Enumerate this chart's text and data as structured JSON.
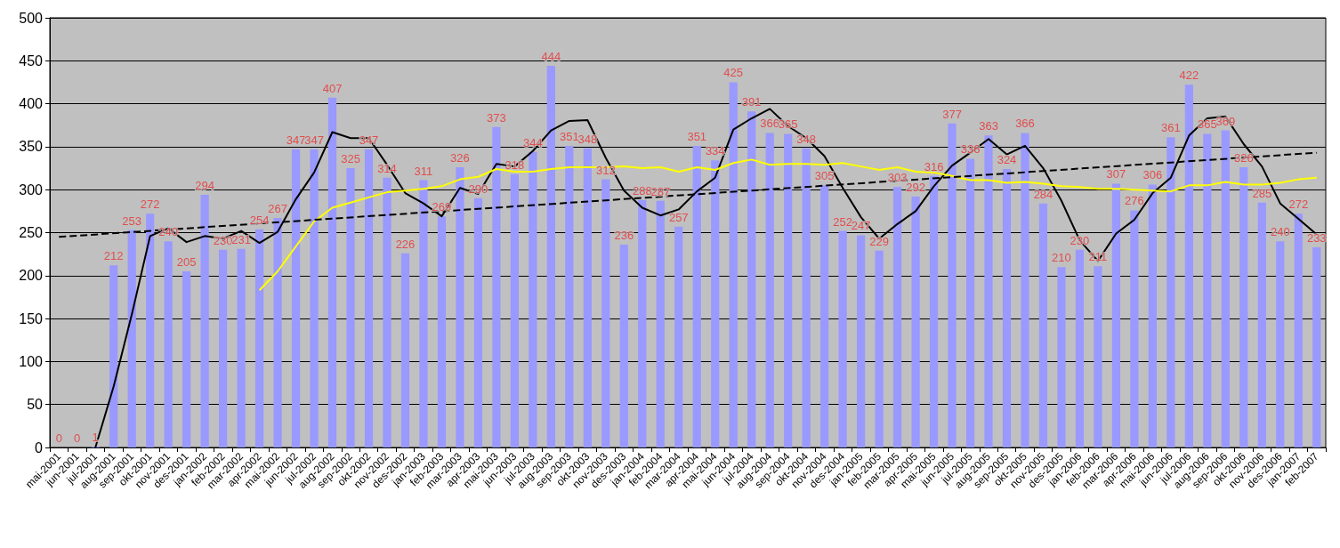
{
  "chart_data": {
    "type": "bar",
    "categories": [
      "mai-2001",
      "jun-2001",
      "jul-2001",
      "aug-2001",
      "sep-2001",
      "okt-2001",
      "nov-2001",
      "des-2001",
      "jan-2002",
      "feb-2002",
      "mar-2002",
      "apr-2002",
      "mai-2002",
      "jun-2002",
      "jul-2002",
      "aug-2002",
      "sep-2002",
      "okt-2002",
      "nov-2002",
      "des-2002",
      "jan-2003",
      "feb-2003",
      "mar-2003",
      "apr-2003",
      "mai-2003",
      "jun-2003",
      "jul-2003",
      "aug-2003",
      "sep-2003",
      "okt-2003",
      "nov-2003",
      "des-2003",
      "jan-2004",
      "feb-2004",
      "mar-2004",
      "apr-2004",
      "mai-2004",
      "jun-2004",
      "jul-2004",
      "aug-2004",
      "sep-2004",
      "okt-2004",
      "nov-2004",
      "des-2004",
      "jan-2005",
      "feb-2005",
      "mar-2005",
      "apr-2005",
      "mai-2005",
      "jun-2005",
      "jul-2005",
      "aug-2005",
      "sep-2005",
      "okt-2005",
      "nov-2005",
      "des-2005",
      "jan-2006",
      "feb-2006",
      "mar-2006",
      "apr-2006",
      "mai-2006",
      "jun-2006",
      "jul-2006",
      "aug-2006",
      "sep-2006",
      "okt-2006",
      "nov-2006",
      "des-2006",
      "jan-2007",
      "feb-2007"
    ],
    "series": [
      {
        "color": "#9999ff",
        "data_labels": true,
        "values": [
          0,
          0,
          1,
          212,
          253,
          272,
          240,
          205,
          294,
          230,
          231,
          254,
          267,
          347,
          347,
          407,
          325,
          347,
          314,
          226,
          311,
          269,
          326,
          290,
          373,
          318,
          344,
          444,
          351,
          348,
          312,
          236,
          288,
          287,
          257,
          351,
          334,
          425,
          391,
          366,
          365,
          348,
          305,
          252,
          247,
          229,
          303,
          292,
          316,
          377,
          336,
          363,
          324,
          366,
          284,
          210,
          230,
          211,
          307,
          276,
          306,
          361,
          422,
          365,
          369,
          326,
          285,
          240,
          272,
          233
        ]
      },
      {
        "type": "line",
        "color": "#000000",
        "line_style": "solid",
        "values": [
          null,
          null,
          0,
          71,
          155,
          246,
          255,
          239,
          246,
          243,
          252,
          238,
          251,
          289,
          320,
          367,
          360,
          360,
          329,
          296,
          284,
          269,
          302,
          295,
          330,
          327,
          345,
          369,
          380,
          381,
          337,
          299,
          279,
          270,
          277,
          298,
          314,
          370,
          383,
          394,
          374,
          360,
          339,
          302,
          268,
          243,
          260,
          275,
          304,
          328,
          343,
          359,
          341,
          351,
          325,
          287,
          241,
          217,
          249,
          265,
          296,
          314,
          363,
          383,
          385,
          353,
          327,
          284,
          266,
          248
        ]
      },
      {
        "type": "line",
        "color": "#ffff00",
        "line_style": "solid",
        "values": [
          null,
          null,
          null,
          null,
          null,
          null,
          null,
          null,
          null,
          null,
          null,
          183,
          205,
          234,
          263,
          279,
          285,
          291,
          297,
          299,
          301,
          304,
          312,
          315,
          324,
          321,
          321,
          324,
          326,
          326,
          326,
          327,
          325,
          326,
          321,
          326,
          323,
          331,
          335,
          329,
          330,
          330,
          329,
          331,
          327,
          323,
          326,
          321,
          320,
          316,
          311,
          311,
          308,
          309,
          307,
          304,
          303,
          301,
          301,
          300,
          299,
          298,
          305,
          305,
          309,
          306,
          306,
          308,
          312,
          314
        ]
      },
      {
        "type": "line",
        "color": "#000000",
        "line_style": "dashed",
        "x": [
          "mai-2001",
          "feb-2007"
        ],
        "values": [
          245,
          343
        ]
      }
    ],
    "ylim": [
      0,
      500
    ],
    "yticks": [
      0,
      50,
      100,
      150,
      200,
      250,
      300,
      350,
      400,
      450,
      500
    ],
    "grid": "y",
    "marker": "none"
  }
}
